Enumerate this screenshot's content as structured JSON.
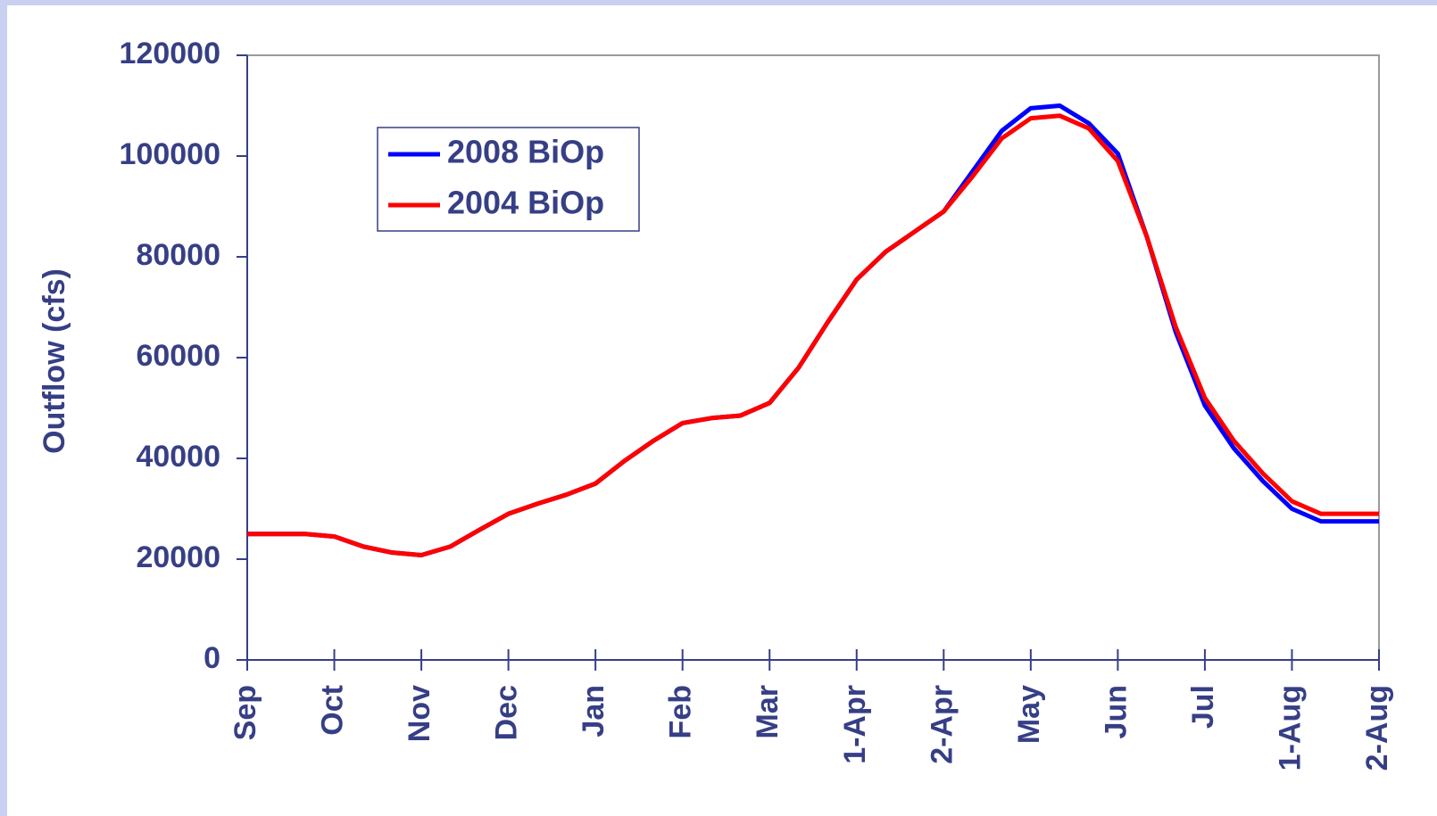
{
  "chart_data": {
    "type": "line",
    "y_label": "Outflow (cfs)",
    "categories": [
      "Sep",
      null,
      null,
      "Oct",
      null,
      null,
      "Nov",
      null,
      null,
      "Dec",
      null,
      null,
      "Jan",
      null,
      null,
      "Feb",
      null,
      null,
      "Mar",
      null,
      null,
      "1-Apr",
      null,
      null,
      "2-Apr",
      null,
      null,
      "May",
      null,
      null,
      "Jun",
      null,
      null,
      "Jul",
      null,
      null,
      "1-Aug",
      null,
      null,
      "2-Aug"
    ],
    "series": [
      {
        "name": "2008 BiOp",
        "color": "#0000ff",
        "values": [
          25000,
          25000,
          25000,
          24500,
          22500,
          21300,
          20800,
          22500,
          25800,
          29000,
          31000,
          32800,
          35000,
          39500,
          43500,
          47000,
          48000,
          48500,
          51000,
          58000,
          67000,
          75500,
          81000,
          85000,
          89000,
          97000,
          105000,
          109500,
          110000,
          106500,
          100500,
          84000,
          65000,
          50500,
          42000,
          35500,
          30000,
          27500,
          27500,
          27500
        ]
      },
      {
        "name": "2004 BiOp",
        "color": "#ff0000",
        "values": [
          25000,
          25000,
          25000,
          24500,
          22500,
          21300,
          20800,
          22500,
          25800,
          29000,
          31000,
          32800,
          35000,
          39500,
          43500,
          47000,
          48000,
          48500,
          51000,
          58000,
          67000,
          75500,
          81000,
          85000,
          89000,
          96000,
          103500,
          107500,
          108000,
          105500,
          99000,
          84000,
          66000,
          52000,
          43500,
          37000,
          31500,
          29000,
          29000,
          29000
        ]
      }
    ],
    "ylim": [
      0,
      120000
    ],
    "yticks": [
      0,
      20000,
      40000,
      60000,
      80000,
      100000,
      120000
    ],
    "legend_position": "upper left"
  }
}
